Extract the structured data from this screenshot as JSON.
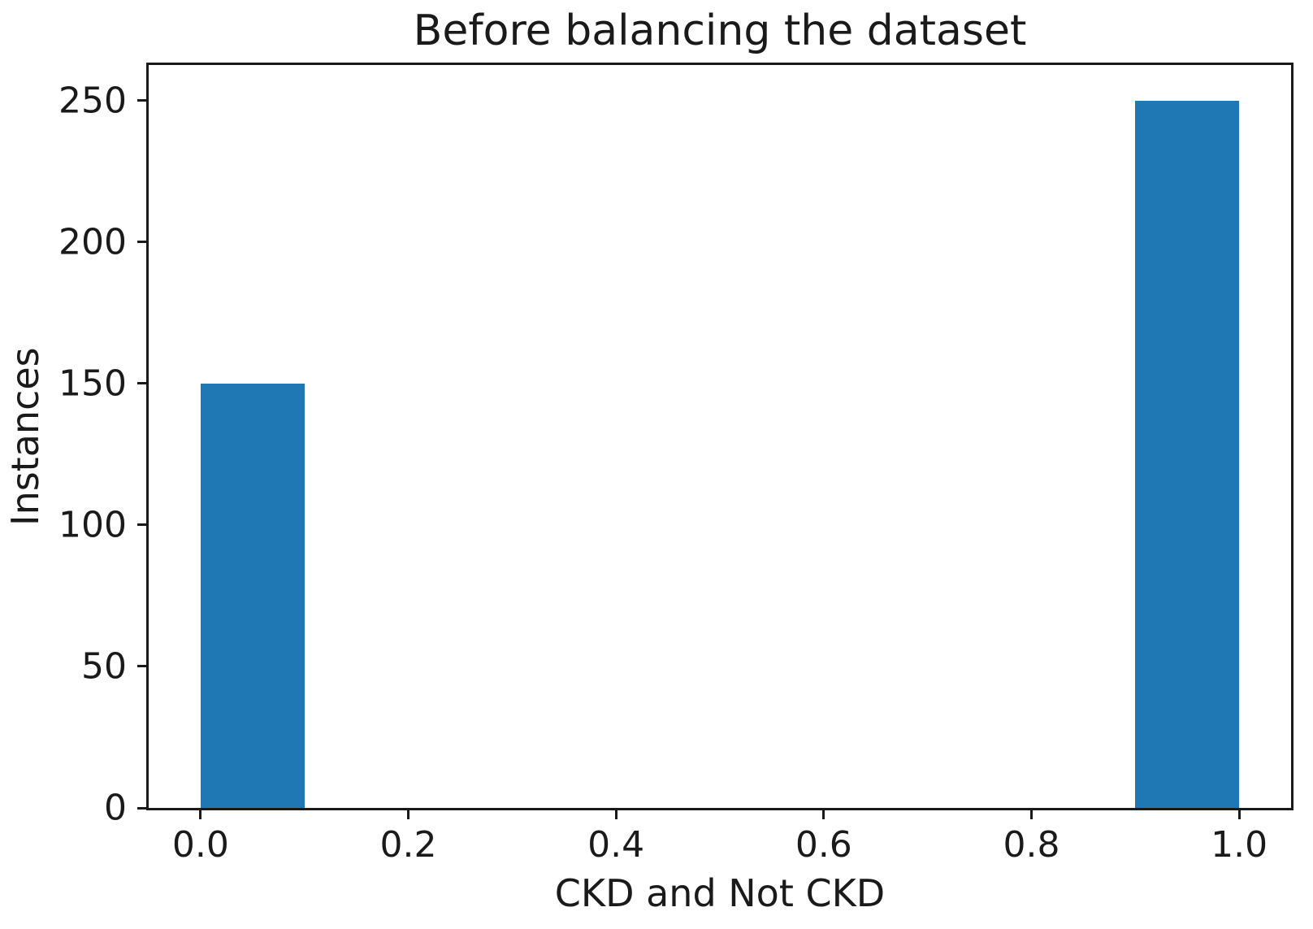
{
  "chart_data": {
    "type": "bar",
    "title": "Before balancing the dataset",
    "xlabel": "CKD and Not CKD",
    "ylabel": "Instances",
    "bar_color": "#1f77b4",
    "axis_color": "#1a1a1a",
    "background": "#ffffff",
    "grid": false,
    "legend_position": "none",
    "xlim": [
      -0.05,
      1.05
    ],
    "ylim": [
      0,
      262.5
    ],
    "bars": [
      {
        "x0": 0.0,
        "x1": 0.1,
        "value": 150
      },
      {
        "x0": 0.9,
        "x1": 1.0,
        "value": 250
      }
    ],
    "xticks": [
      {
        "value": 0.0,
        "label": "0.0"
      },
      {
        "value": 0.2,
        "label": "0.2"
      },
      {
        "value": 0.4,
        "label": "0.4"
      },
      {
        "value": 0.6,
        "label": "0.6"
      },
      {
        "value": 0.8,
        "label": "0.8"
      },
      {
        "value": 1.0,
        "label": "1.0"
      }
    ],
    "yticks": [
      {
        "value": 0,
        "label": "0"
      },
      {
        "value": 50,
        "label": "50"
      },
      {
        "value": 100,
        "label": "100"
      },
      {
        "value": 150,
        "label": "150"
      },
      {
        "value": 200,
        "label": "200"
      },
      {
        "value": 250,
        "label": "250"
      }
    ]
  }
}
